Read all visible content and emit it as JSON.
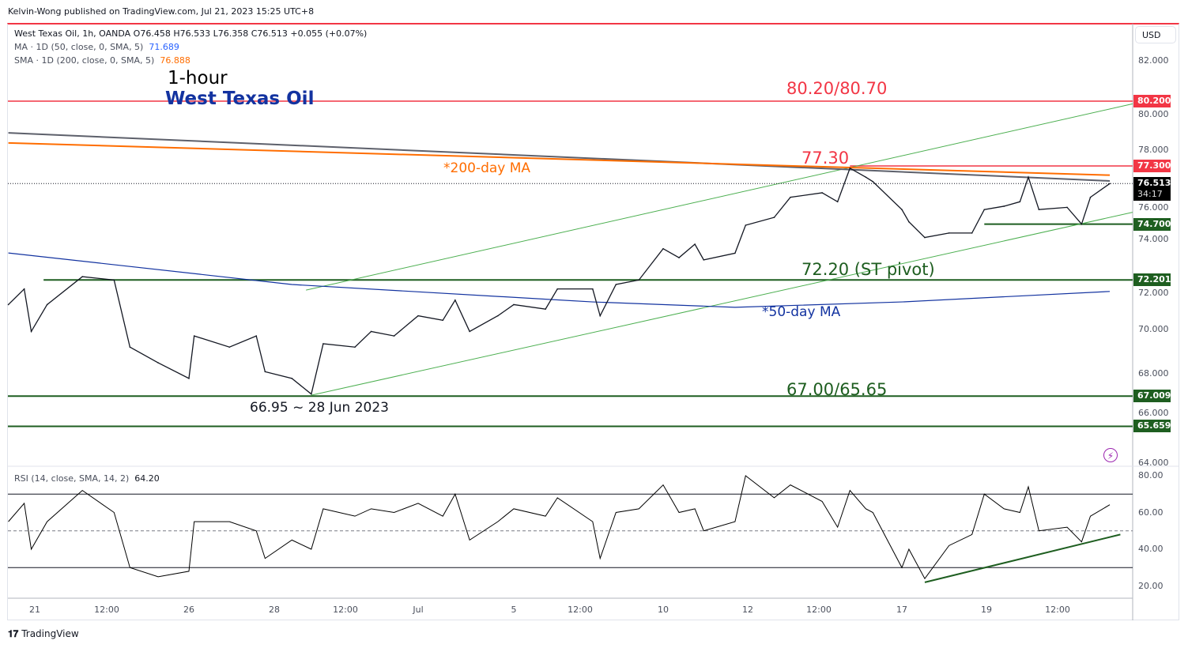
{
  "publisher_line": "Kelvin-Wong published on TradingView.com, Jul 21, 2023 15:25 UTC+8",
  "legend": {
    "symbol_line": "West Texas Oil, 1h, OANDA  O76.458  H76.533  L76.358  C76.513  +0.055 (+0.07%)",
    "ma_label": "MA · 1D (50, close, 0, SMA, 5)",
    "ma_value": "71.689",
    "sma_label": "SMA · 1D (200, close, 0, SMA, 5)",
    "sma_value": "76.888",
    "rsi_label": "RSI (14, close, SMA, 14, 2)",
    "rsi_value": "64.20"
  },
  "currency_button": "USD",
  "branding": "TradingView",
  "colors": {
    "red": "#f23645",
    "green": "#1e5e20",
    "orange": "#ff6d00",
    "blue": "#1333a0",
    "grey": "#5d606b",
    "channel": "#4caf50",
    "rsi": "#000000"
  },
  "chart_data": [
    {
      "type": "line",
      "title": "1-hour",
      "subtitle": "West Texas Oil",
      "ylim": [
        64,
        82.6
      ],
      "y_ticks": [
        "82.000",
        "80.000",
        "78.000",
        "76.000",
        "74.000",
        "72.000",
        "70.000",
        "68.000",
        "66.000",
        "64.000"
      ],
      "x_ticks": [
        "21",
        "12:00",
        "26",
        "28",
        "12:00",
        "Jul",
        "5",
        "12:00",
        "10",
        "12",
        "12:00",
        "17",
        "19",
        "12:00"
      ],
      "grid": false,
      "price": [
        {
          "t": "06-20 09:00",
          "v": 71.1
        },
        {
          "t": "06-20 18:00",
          "v": 71.8
        },
        {
          "t": "06-20 22:00",
          "v": 69.9
        },
        {
          "t": "06-21 07:00",
          "v": 71.1
        },
        {
          "t": "06-22 03:00",
          "v": 72.35
        },
        {
          "t": "06-22 21:00",
          "v": 72.2
        },
        {
          "t": "06-23 06:00",
          "v": 69.2
        },
        {
          "t": "06-23 22:00",
          "v": 68.5
        },
        {
          "t": "06-26 00:00",
          "v": 67.8
        },
        {
          "t": "06-26 03:00",
          "v": 69.7
        },
        {
          "t": "06-26 23:00",
          "v": 69.2
        },
        {
          "t": "06-27 14:00",
          "v": 69.7
        },
        {
          "t": "06-27 19:00",
          "v": 68.1
        },
        {
          "t": "06-28 10:00",
          "v": 67.8
        },
        {
          "t": "06-28 21:00",
          "v": 67.1
        },
        {
          "t": "06-29 04:00",
          "v": 69.35
        },
        {
          "t": "06-29 22:00",
          "v": 69.2
        },
        {
          "t": "06-30 07:00",
          "v": 69.9
        },
        {
          "t": "06-30 20:00",
          "v": 69.7
        },
        {
          "t": "07-03 00:00",
          "v": 70.6
        },
        {
          "t": "07-03 14:00",
          "v": 70.4
        },
        {
          "t": "07-03 21:00",
          "v": 71.3
        },
        {
          "t": "07-04 05:00",
          "v": 69.9
        },
        {
          "t": "07-04 21:00",
          "v": 70.6
        },
        {
          "t": "07-05 00:00",
          "v": 71.1
        },
        {
          "t": "07-05 18:00",
          "v": 70.9
        },
        {
          "t": "07-06 01:00",
          "v": 71.8
        },
        {
          "t": "07-06 21:00",
          "v": 71.8
        },
        {
          "t": "07-07 01:00",
          "v": 70.6
        },
        {
          "t": "07-07 10:00",
          "v": 72.0
        },
        {
          "t": "07-07 23:00",
          "v": 72.2
        },
        {
          "t": "07-10 00:00",
          "v": 73.6
        },
        {
          "t": "07-10 09:00",
          "v": 73.2
        },
        {
          "t": "07-10 18:00",
          "v": 73.8
        },
        {
          "t": "07-10 23:00",
          "v": 73.1
        },
        {
          "t": "07-11 17:00",
          "v": 73.4
        },
        {
          "t": "07-11 23:00",
          "v": 74.65
        },
        {
          "t": "07-12 15:00",
          "v": 75.0
        },
        {
          "t": "07-13 00:00",
          "v": 75.9
        },
        {
          "t": "07-13 18:00",
          "v": 76.1
        },
        {
          "t": "07-14 03:00",
          "v": 75.7
        },
        {
          "t": "07-14 10:00",
          "v": 77.2
        },
        {
          "t": "07-14 19:00",
          "v": 76.8
        },
        {
          "t": "07-14 23:00",
          "v": 76.6
        },
        {
          "t": "07-17 00:00",
          "v": 75.35
        },
        {
          "t": "07-17 04:00",
          "v": 74.8
        },
        {
          "t": "07-17 13:00",
          "v": 74.1
        },
        {
          "t": "07-18 03:00",
          "v": 74.3
        },
        {
          "t": "07-18 16:00",
          "v": 74.3
        },
        {
          "t": "07-18 23:00",
          "v": 75.35
        },
        {
          "t": "07-19 10:00",
          "v": 75.5
        },
        {
          "t": "07-19 19:00",
          "v": 75.7
        },
        {
          "t": "07-20 00:00",
          "v": 76.8
        },
        {
          "t": "07-20 06:00",
          "v": 75.35
        },
        {
          "t": "07-20 22:00",
          "v": 75.45
        },
        {
          "t": "07-21 06:00",
          "v": 74.7
        },
        {
          "t": "07-21 11:00",
          "v": 75.9
        },
        {
          "t": "07-21 22:00",
          "v": 76.513
        }
      ],
      "ma50": [
        {
          "t": "06-20 09:00",
          "v": 73.41
        },
        {
          "t": "06-28 10:00",
          "v": 72.0
        },
        {
          "t": "07-06 21:00",
          "v": 71.22
        },
        {
          "t": "07-11 17:00",
          "v": 70.98
        },
        {
          "t": "07-17 00:00",
          "v": 71.22
        },
        {
          "t": "07-21 22:00",
          "v": 71.689
        }
      ],
      "sma200": [
        {
          "t": "06-20 09:00",
          "v": 78.33
        },
        {
          "t": "07-21 22:00",
          "v": 76.888
        }
      ],
      "downtrend_line": [
        {
          "t": "06-20 09:00",
          "v": 78.78
        },
        {
          "t": "07-21 22:00",
          "v": 76.63
        }
      ],
      "channel_upper": [
        {
          "t": "06-28 18:00",
          "v": 71.75
        },
        {
          "t": "07-14 10:00",
          "v": 77.23
        }
      ],
      "channel_lower": [
        {
          "t": "06-28 21:00",
          "v": 67.05
        },
        {
          "t": "07-21 06:00",
          "v": 74.72
        }
      ],
      "levels": [
        {
          "value": 80.2,
          "label": "80.200",
          "color": "red",
          "from": null
        },
        {
          "value": 77.3,
          "label": "77.300",
          "color": "red",
          "from": "07-14 10:00"
        },
        {
          "value": 74.7,
          "label": "74.700",
          "color": "green",
          "from": "07-18 23:00"
        },
        {
          "value": 72.201,
          "label": "72.201",
          "color": "green",
          "from": "06-21 05:00"
        },
        {
          "value": 67.009,
          "label": "67.009",
          "color": "green",
          "from": null
        },
        {
          "value": 65.659,
          "label": "65.659",
          "color": "green",
          "from": null
        }
      ],
      "last_price": {
        "value": 76.513,
        "label": "76.513",
        "countdown": "34:17"
      },
      "annotations": [
        {
          "text": "80.20/80.70",
          "color": "red"
        },
        {
          "text": "77.30",
          "color": "red"
        },
        {
          "text": "*200-day MA",
          "color": "orange"
        },
        {
          "text": "72.20 (ST pivot)",
          "color": "green"
        },
        {
          "text": "*50-day MA",
          "color": "blue"
        },
        {
          "text": "67.00/65.65",
          "color": "green"
        },
        {
          "text": "66.95 ~ 28 Jun 2023",
          "color": "black"
        }
      ]
    },
    {
      "type": "line",
      "title": "RSI (14, close, SMA, 14, 2)",
      "ylim": [
        15,
        82
      ],
      "y_ticks": [
        "80.00",
        "60.00",
        "40.00",
        "20.00"
      ],
      "bands": [
        70,
        50,
        30
      ],
      "rsi": [
        55,
        65,
        40,
        55,
        72,
        60,
        30,
        25,
        28,
        55,
        55,
        50,
        35,
        45,
        40,
        62,
        58,
        62,
        60,
        65,
        58,
        70,
        45,
        55,
        62,
        58,
        68,
        55,
        35,
        60,
        62,
        75,
        60,
        62,
        50,
        55,
        80,
        68,
        75,
        66,
        52,
        72,
        62,
        60,
        30,
        40,
        24,
        42,
        48,
        70,
        62,
        60,
        74,
        50,
        52,
        44,
        58,
        64.2
      ],
      "trendline": [
        {
          "t": "07-17 13:00",
          "v": 22
        },
        {
          "t": "07-22 04:00",
          "v": 48
        }
      ]
    }
  ]
}
